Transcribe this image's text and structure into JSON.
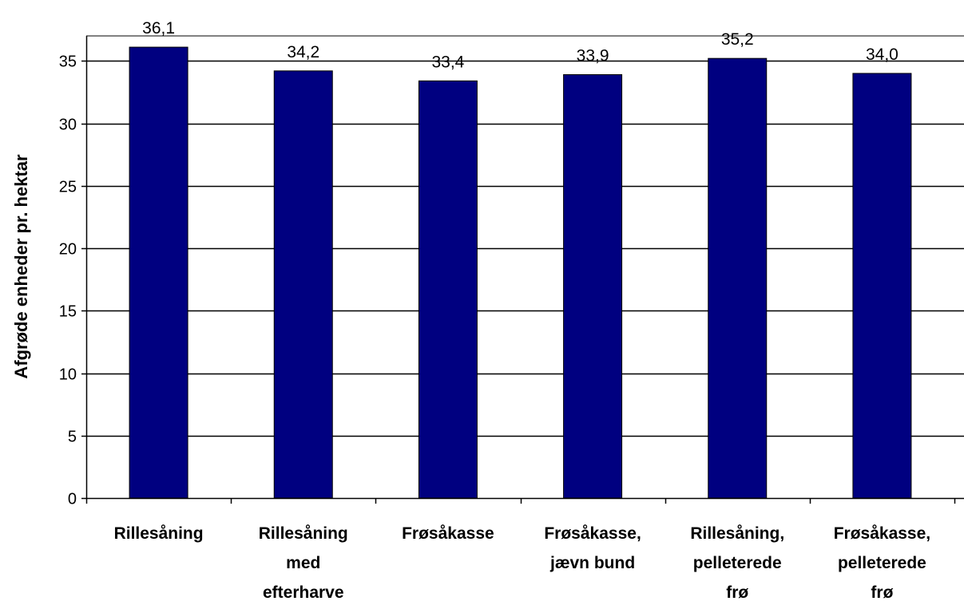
{
  "chart_data": {
    "type": "bar",
    "title": "",
    "xlabel": "",
    "ylabel": "Afgrøde enheder pr. hektar",
    "ylim": [
      0,
      37
    ],
    "yticks": [
      0,
      5,
      10,
      15,
      20,
      25,
      30,
      35
    ],
    "grid": true,
    "bar_color": "#000080",
    "categories": [
      [
        "Rillesåning"
      ],
      [
        "Rillesåning",
        "med",
        "efterharve"
      ],
      [
        "Frøsåkasse"
      ],
      [
        "Frøsåkasse,",
        "jævn bund"
      ],
      [
        "Rillesåning,",
        "pelleterede",
        "frø"
      ],
      [
        "Frøsåkasse,",
        "pelleterede",
        "frø"
      ]
    ],
    "values": [
      36.1,
      34.2,
      33.4,
      33.9,
      35.2,
      34.0
    ],
    "data_labels": [
      "36,1",
      "34,2",
      "33,4",
      "33,9",
      "35,2",
      "34,0"
    ]
  }
}
